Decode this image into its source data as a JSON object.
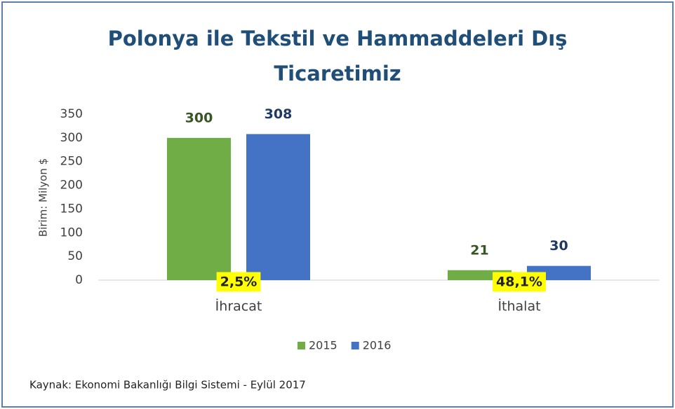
{
  "chart_data": {
    "type": "bar",
    "title": "Polonya ile Tekstil ve Hammaddeleri Dış Ticaretimiz",
    "ylabel": "Birim: Milyon $",
    "categories": [
      "İhracat",
      "İthalat"
    ],
    "series": [
      {
        "name": "2015",
        "color": "#70ad47",
        "values": [
          300,
          21
        ]
      },
      {
        "name": "2016",
        "color": "#4472c4",
        "values": [
          308,
          30
        ]
      }
    ],
    "annotations": [
      "2,5%",
      "48,1%"
    ],
    "ylim": [
      0,
      350
    ],
    "yticks": [
      0,
      50,
      100,
      150,
      200,
      250,
      300,
      350
    ],
    "grid": false,
    "legend": "bottom",
    "source": "Kaynak: Ekonomi Bakanlığı Bilgi Sistemi - Eylül 2017"
  }
}
